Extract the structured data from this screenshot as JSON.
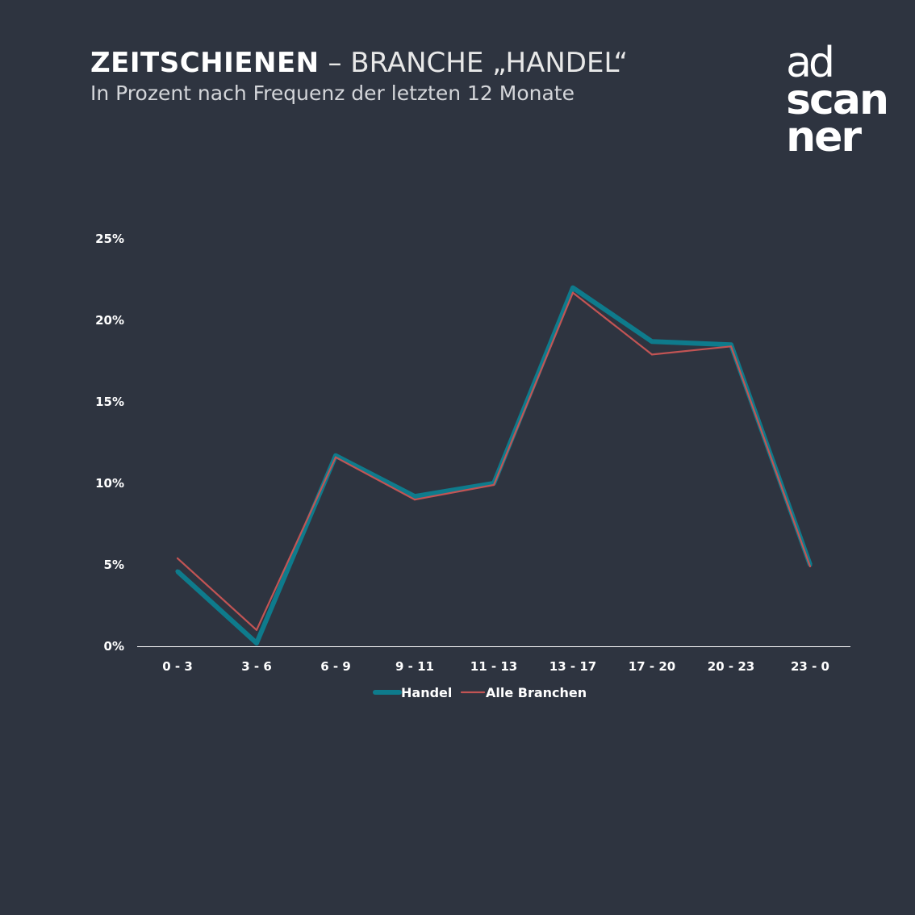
{
  "header": {
    "title_strong": "ZEITSCHIENEN",
    "title_rest": " – BRANCHE „HANDEL“",
    "subtitle": "In Prozent nach Frequenz der letzten 12 Monate"
  },
  "logo": {
    "line1": "ad",
    "line2": "scan",
    "line3": "ner"
  },
  "chart_data": {
    "type": "line",
    "title": "ZEITSCHIENEN – BRANCHE „HANDEL“",
    "subtitle": "In Prozent nach Frequenz der letzten 12 Monate",
    "categories": [
      "0 - 3",
      "3 - 6",
      "6 - 9",
      "9 - 11",
      "11 - 13",
      "13 - 17",
      "17 - 20",
      "20 - 23",
      "23 - 0"
    ],
    "series": [
      {
        "name": "Handel",
        "values": [
          4.6,
          0.2,
          11.7,
          9.2,
          10.0,
          22.0,
          18.7,
          18.5,
          5.0
        ],
        "color": "#0e7b8c"
      },
      {
        "name": "Alle Branchen",
        "values": [
          5.4,
          1.0,
          11.6,
          9.0,
          9.9,
          21.7,
          17.9,
          18.4,
          4.9
        ],
        "color": "#c25454"
      }
    ],
    "yticks": [
      "0%",
      "5%",
      "10%",
      "15%",
      "20%",
      "25%"
    ],
    "ylim": [
      0,
      25
    ],
    "grid": false,
    "legend": "bottom-center"
  }
}
